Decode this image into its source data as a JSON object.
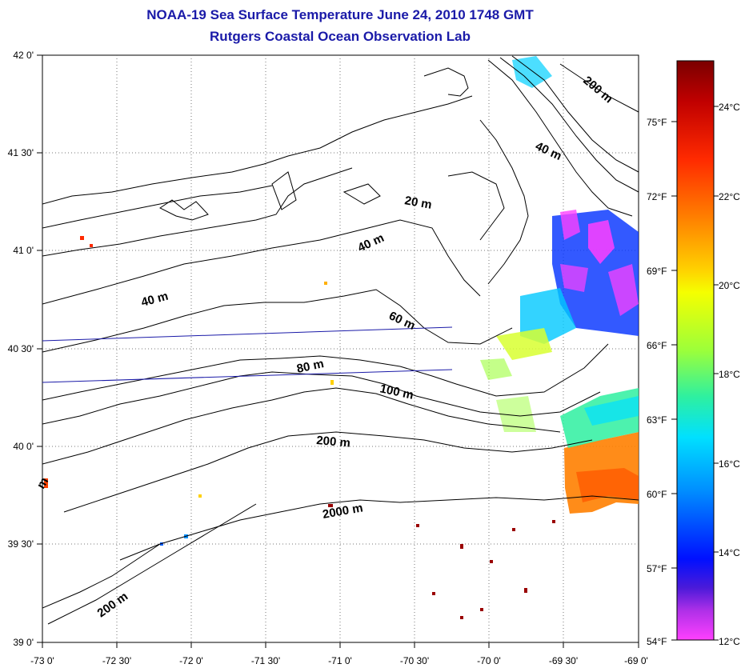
{
  "title": "NOAA-19 Sea Surface Temperature June 24, 2010 1748 GMT",
  "subtitle": "Rutgers Coastal Ocean Observation Lab",
  "map": {
    "lon_range": [
      -73,
      -69
    ],
    "lat_range": [
      39,
      42
    ],
    "lon_tick_labels": [
      "-73 0'",
      "-72 30'",
      "-72 0'",
      "-71 30'",
      "-71 0'",
      "-70 30'",
      "-70 0'",
      "-69 30'",
      "-69 0'"
    ],
    "lat_tick_labels": [
      "42 0'",
      "41 30'",
      "41 0'",
      "40 30'",
      "40 0'",
      "39 30'",
      "39 0'"
    ],
    "grid": true,
    "contour_labels": [
      "200 m",
      "40 m",
      "20 m",
      "40 m",
      "40 m",
      "60 m",
      "80 m",
      "100 m",
      "200 m",
      "2000 m",
      "200 m",
      "m"
    ]
  },
  "colorbar": {
    "fahrenheit_labels": [
      "75°F",
      "72°F",
      "69°F",
      "66°F",
      "63°F",
      "60°F",
      "57°F",
      "54°F"
    ],
    "celsius_labels": [
      "24°C",
      "22°C",
      "20°C",
      "18°C",
      "16°C",
      "14°C",
      "12°C"
    ],
    "colors": [
      "#7a0000",
      "#c00000",
      "#ff2a00",
      "#ff7f00",
      "#ffd000",
      "#f5ff00",
      "#9cff3a",
      "#2ef0a0",
      "#00e0ff",
      "#0090ff",
      "#0010ff",
      "#4b1ad9",
      "#b030e8",
      "#ff40ff"
    ]
  }
}
